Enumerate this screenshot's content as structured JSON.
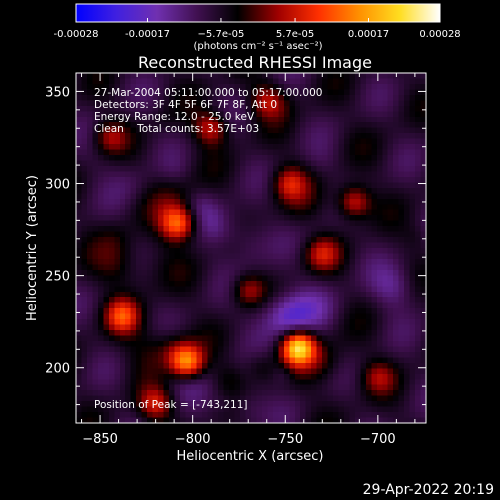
{
  "chart_data": {
    "type": "heatmap",
    "title": "Reconstructed RHESSI Image",
    "xlabel": "Heliocentric X (arcsec)",
    "ylabel": "Heliocentric Y (arcsec)",
    "xlim": [
      -863,
      -674
    ],
    "ylim": [
      170,
      360
    ],
    "x_ticks": [
      -850,
      -800,
      -750,
      -700
    ],
    "y_ticks": [
      200,
      250,
      300,
      350
    ],
    "x_tick_labels": [
      "−850",
      "−800",
      "−750",
      "−700"
    ],
    "y_tick_labels": [
      "200",
      "250",
      "300",
      "350"
    ],
    "info_lines": [
      "27-Mar-2004 05:11:00.000 to 05:17:00.000",
      "Detectors: 3F 4F 5F 6F 7F 8F, Att 0",
      "Energy Range: 12.0 - 25.0 keV",
      "Clean    Total counts: 3.57E+03"
    ],
    "peak_label": "Position of Peak = [-743,211]",
    "peak_position": [
      -743,
      211
    ],
    "colorbar": {
      "min": -0.00028,
      "max": 0.00028,
      "tick_values": [
        -0.00028,
        -0.00017,
        -5.7e-05,
        5.7e-05,
        0.00017,
        0.00028
      ],
      "tick_labels": [
        "-0.00028",
        "-0.00017",
        "−5.7e-05",
        "5.7e-05",
        "0.00017",
        "0.00028"
      ],
      "units": "(photons cm⁻² s⁻¹ asec⁻²)",
      "colors": [
        "#0000ff",
        "#4020e0",
        "#7030b0",
        "#401050",
        "#000000",
        "#a00000",
        "#ff3000",
        "#ff9000",
        "#ffdd20",
        "#ffffff"
      ]
    },
    "emission_sources": [
      {
        "x": -743,
        "y": 211,
        "value": 0.00028
      },
      {
        "x": -803,
        "y": 203,
        "value": 0.00022
      },
      {
        "x": -808,
        "y": 278,
        "value": 0.00018
      },
      {
        "x": -838,
        "y": 228,
        "value": 0.00015
      },
      {
        "x": -713,
        "y": 290,
        "value": 0.00014
      },
      {
        "x": -748,
        "y": 300,
        "value": 0.00011
      },
      {
        "x": -770,
        "y": 242,
        "value": 0.0001
      },
      {
        "x": -730,
        "y": 262,
        "value": 0.0001
      },
      {
        "x": -790,
        "y": 330,
        "value": 0.00012
      },
      {
        "x": -760,
        "y": 345,
        "value": 0.0001
      },
      {
        "x": -845,
        "y": 325,
        "value": 9e-05
      },
      {
        "x": -820,
        "y": 180,
        "value": 0.00012
      },
      {
        "x": -700,
        "y": 195,
        "value": 8e-05
      }
    ],
    "grid": false
  },
  "footer": {
    "date": "29-Apr-2022 20:19"
  }
}
